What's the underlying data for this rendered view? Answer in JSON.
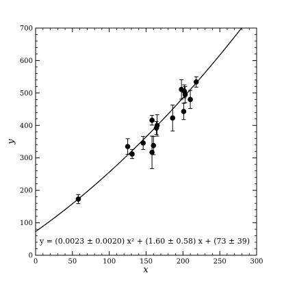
{
  "chart_data": {
    "type": "scatter",
    "title": "",
    "xlabel": "x",
    "ylabel": "y",
    "xlim": [
      0,
      300
    ],
    "ylim": [
      0,
      700
    ],
    "x_ticks": [
      0,
      50,
      100,
      150,
      200,
      250,
      300
    ],
    "y_ticks": [
      0,
      100,
      200,
      300,
      400,
      500,
      600,
      700
    ],
    "x_tick_labels": [
      "0",
      "50",
      "100",
      "150",
      "200",
      "250",
      "300"
    ],
    "y_tick_labels": [
      "0",
      "100",
      "200",
      "300",
      "400",
      "500",
      "600",
      "700"
    ],
    "grid": false,
    "legend": "none",
    "points": [
      {
        "x": 58,
        "y": 173,
        "err": 14
      },
      {
        "x": 125,
        "y": 335,
        "err": 24
      },
      {
        "x": 131,
        "y": 312,
        "err": 14
      },
      {
        "x": 146,
        "y": 346,
        "err": 20
      },
      {
        "x": 158,
        "y": 416,
        "err": 15
      },
      {
        "x": 158,
        "y": 317,
        "err": 50
      },
      {
        "x": 160,
        "y": 338,
        "err": 28
      },
      {
        "x": 164,
        "y": 392,
        "err": 20
      },
      {
        "x": 165,
        "y": 400,
        "err": 33
      },
      {
        "x": 186,
        "y": 423,
        "err": 40
      },
      {
        "x": 198,
        "y": 511,
        "err": 30
      },
      {
        "x": 201,
        "y": 443,
        "err": 25
      },
      {
        "x": 202,
        "y": 505,
        "err": 20
      },
      {
        "x": 203,
        "y": 495,
        "err": 25
      },
      {
        "x": 210,
        "y": 480,
        "err": 28
      },
      {
        "x": 218,
        "y": 534,
        "err": 16
      }
    ],
    "fit": {
      "a": 0.0023,
      "b": 1.6,
      "c": 73
    },
    "annotation": "y = (0.0023 ± 0.0020) x² + (1.60 ± 0.58) x + (73 ± 39)"
  }
}
